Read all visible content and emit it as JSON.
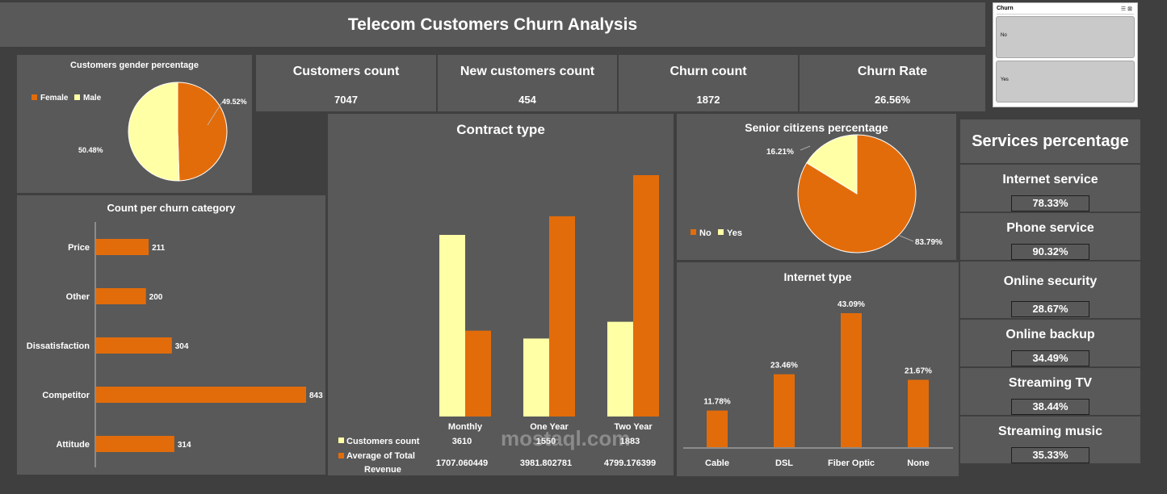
{
  "title": "Telecom Customers Churn Analysis",
  "kpis": [
    {
      "label": "Customers count",
      "value": "7047"
    },
    {
      "label": "New customers count",
      "value": "454"
    },
    {
      "label": "Churn count",
      "value": "1872"
    },
    {
      "label": "Churn Rate",
      "value": "26.56%"
    }
  ],
  "slicer": {
    "title": "Churn",
    "items": [
      "No",
      "Yes"
    ]
  },
  "services": {
    "title": "Services percentage",
    "items": [
      {
        "label": "Internet service",
        "value": "78.33%"
      },
      {
        "label": "Phone service",
        "value": "90.32%"
      },
      {
        "label": "Online security",
        "value": "28.67%"
      },
      {
        "label": "Online backup",
        "value": "34.49%"
      },
      {
        "label": "Streaming TV",
        "value": "38.44%"
      },
      {
        "label": "Streaming music",
        "value": "35.33%"
      }
    ]
  },
  "watermark": "mostaql.com",
  "colors": {
    "orange": "#e36c0a",
    "cream": "#ffffa6",
    "panel": "#595959",
    "background": "#3f3f3f"
  },
  "chart_data": [
    {
      "id": "gender",
      "type": "pie",
      "title": "Customers gender percentage",
      "legend": [
        "Female",
        "Male"
      ],
      "legend_position": "top-left",
      "slices": [
        {
          "name": "Female",
          "value": 49.52,
          "label": "49.52%",
          "color": "#e36c0a"
        },
        {
          "name": "Male",
          "value": 50.48,
          "label": "50.48%",
          "color": "#ffffa6"
        }
      ]
    },
    {
      "id": "churn_category",
      "type": "bar",
      "orientation": "horizontal",
      "title": "Count per churn category",
      "categories": [
        "Price",
        "Other",
        "Dissatisfaction",
        "Competitor",
        "Attitude"
      ],
      "values": [
        211,
        200,
        304,
        843,
        314
      ],
      "xlim": [
        0,
        900
      ]
    },
    {
      "id": "contract",
      "type": "bar",
      "title": "Contract type",
      "categories": [
        "Monthly",
        "One Year",
        "Two Year"
      ],
      "series": [
        {
          "name": "Customers count",
          "values": [
            3610,
            1550,
            1883
          ],
          "labels": [
            "3610",
            "1550",
            "1883"
          ],
          "color": "#ffffa6"
        },
        {
          "name": "Average of Total Revenue",
          "values": [
            1707.060449,
            3981.802781,
            4799.176399
          ],
          "labels": [
            "1707.060449",
            "3981.802781",
            "4799.176399"
          ],
          "color": "#e36c0a"
        }
      ],
      "legend_position": "bottom-table"
    },
    {
      "id": "senior",
      "type": "pie",
      "title": "Senior citizens percentage",
      "legend": [
        "No",
        "Yes"
      ],
      "legend_position": "bottom-left",
      "slices": [
        {
          "name": "No",
          "value": 83.79,
          "label": "83.79%",
          "color": "#e36c0a"
        },
        {
          "name": "Yes",
          "value": 16.21,
          "label": "16.21%",
          "color": "#ffffa6"
        }
      ]
    },
    {
      "id": "internet",
      "type": "bar",
      "title": "Internet type",
      "categories": [
        "Cable",
        "DSL",
        "Fiber Optic",
        "None"
      ],
      "values": [
        11.78,
        23.46,
        43.09,
        21.67
      ],
      "labels": [
        "11.78%",
        "23.46%",
        "43.09%",
        "21.67%"
      ],
      "ylim": [
        0,
        50
      ]
    }
  ]
}
